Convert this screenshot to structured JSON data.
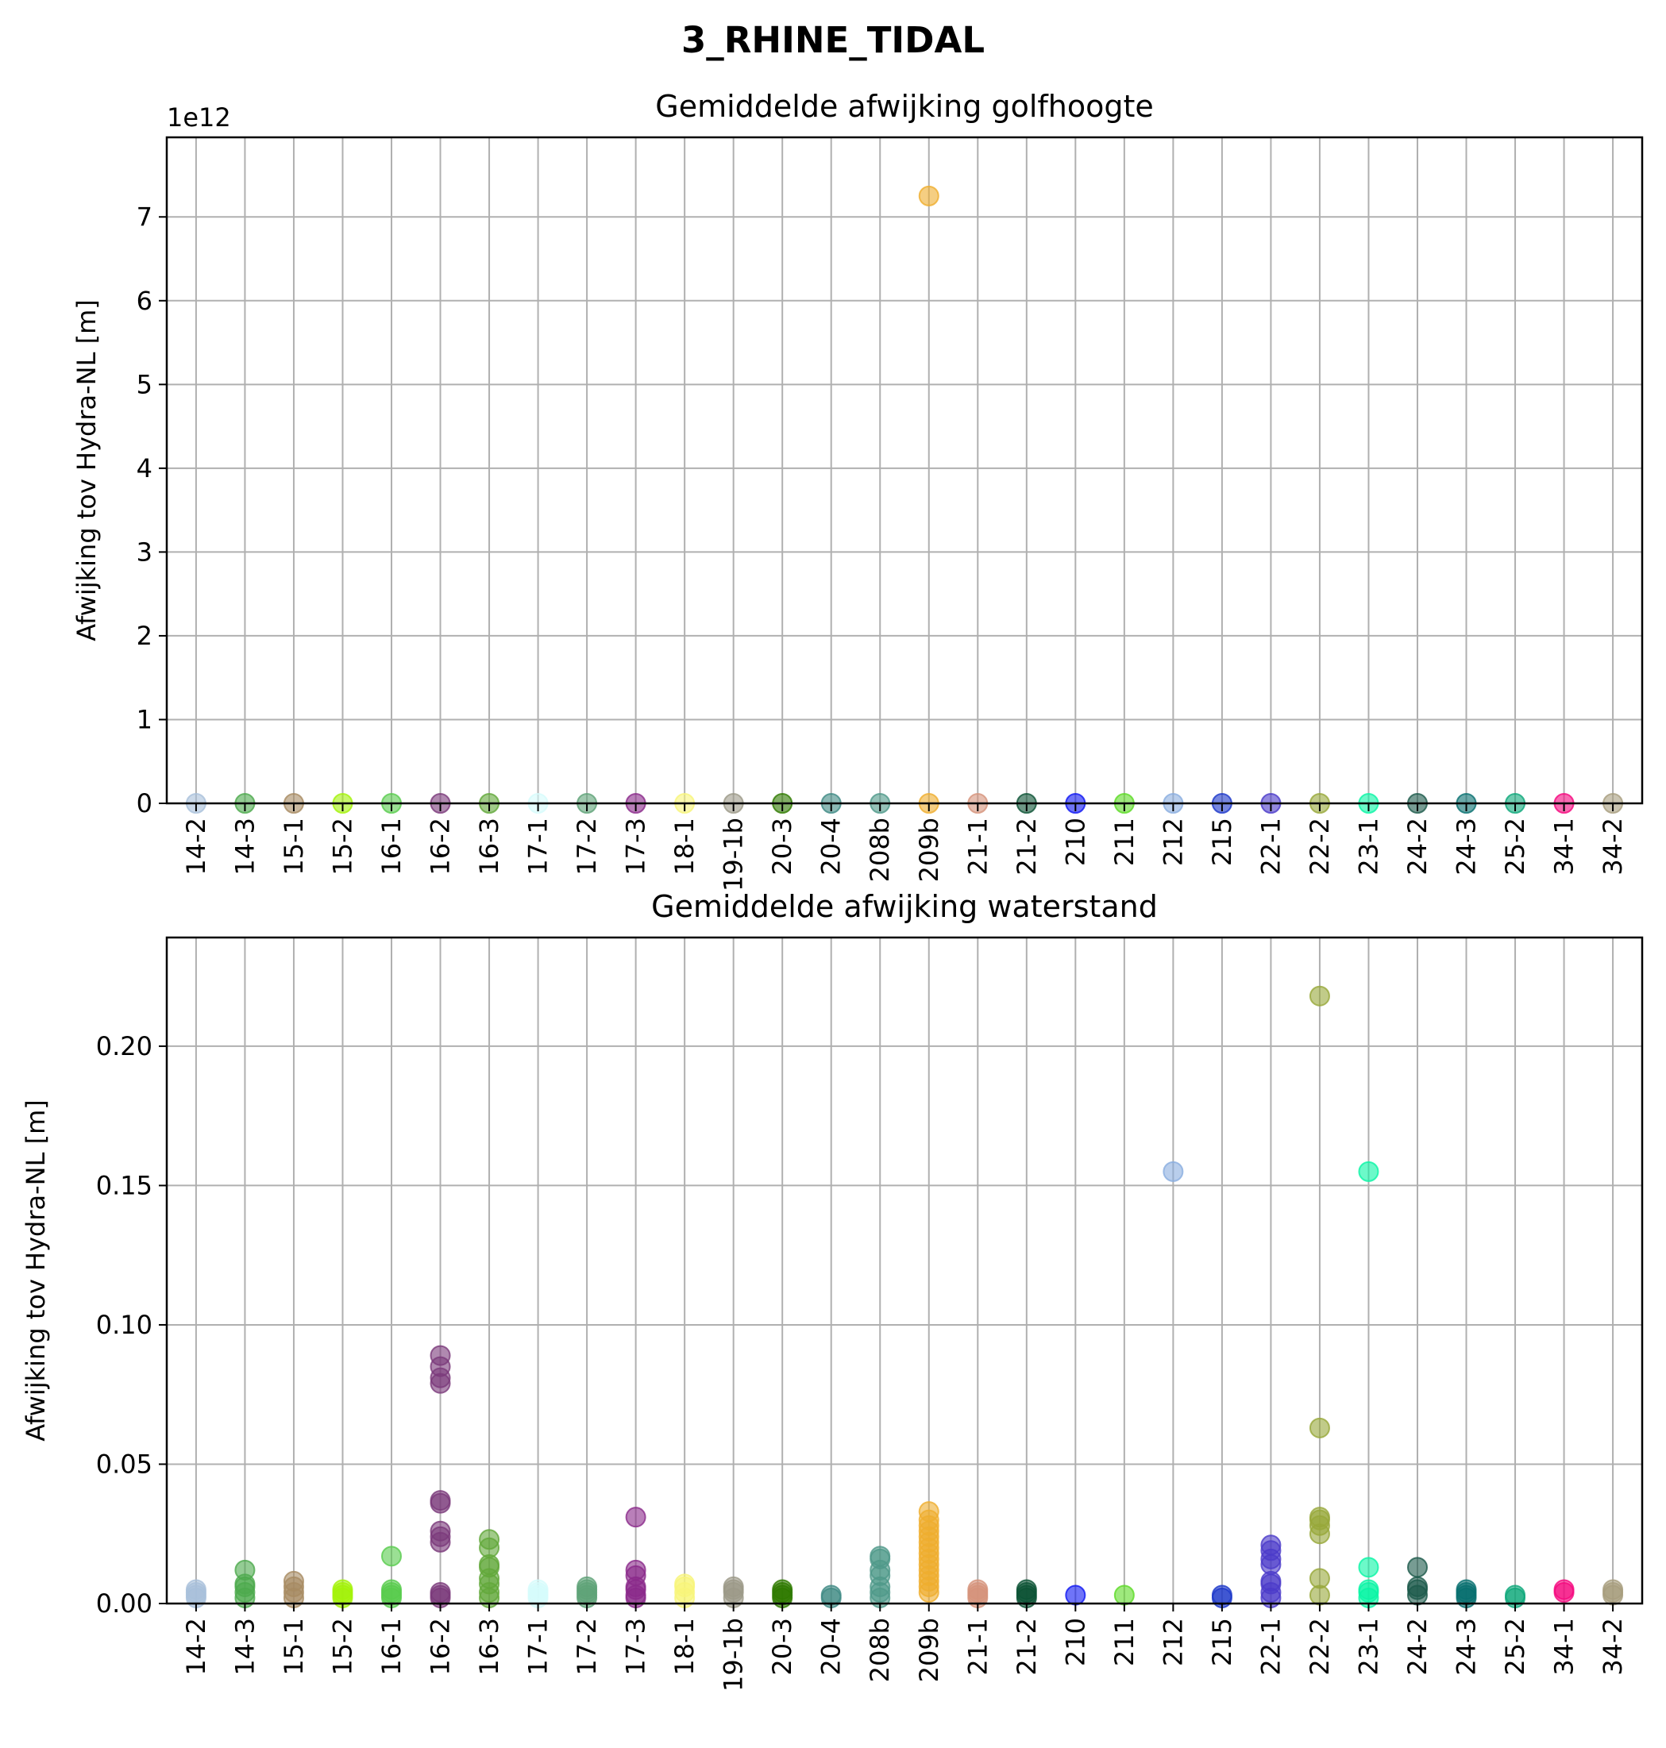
{
  "suptitle": "3_RHINE_TIDAL",
  "categories": [
    "14-2",
    "14-3",
    "15-1",
    "15-2",
    "16-1",
    "16-2",
    "16-3",
    "17-1",
    "17-2",
    "17-3",
    "18-1",
    "19-1b",
    "20-3",
    "20-4",
    "208b",
    "209b",
    "21-1",
    "21-2",
    "210",
    "211",
    "212",
    "215",
    "22-1",
    "22-2",
    "23-1",
    "24-2",
    "24-3",
    "25-2",
    "34-1",
    "34-2"
  ],
  "category_colors": {
    "14-2": "#a9c0db",
    "14-3": "#4daa4d",
    "15-1": "#a78b62",
    "15-2": "#a4f20a",
    "16-1": "#59cc4d",
    "16-2": "#7b3a7b",
    "16-3": "#62a83a",
    "17-1": "#d6fbfb",
    "17-2": "#5fa378",
    "17-3": "#8b2a8b",
    "18-1": "#f8f57a",
    "19-1b": "#9c9a88",
    "20-3": "#2f7a00",
    "20-4": "#3f8a84",
    "208b": "#4f9989",
    "209b": "#efae2e",
    "21-1": "#d6937c",
    "21-2": "#0d5436",
    "210": "#0f17f3",
    "211": "#5ddb26",
    "212": "#8aaee0",
    "215": "#1c37c9",
    "22-1": "#4b3bc9",
    "22-2": "#97a83a",
    "23-1": "#0af5a5",
    "24-2": "#1d5a4b",
    "24-3": "#097070",
    "25-2": "#0ea87a",
    "34-1": "#f5087e",
    "34-2": "#a89e7e"
  },
  "chart_data": [
    {
      "type": "scatter",
      "title": "Gemiddelde afwijking golfhoogte",
      "ylabel": "Afwijking tov Hydra-NL [m]",
      "offset_text": "1e12",
      "ylim": [
        0,
        7.95
      ],
      "yticks": [
        0,
        1,
        2,
        3,
        4,
        5,
        6,
        7
      ],
      "ytick_labels": [
        "0",
        "1",
        "2",
        "3",
        "4",
        "5",
        "6",
        "7"
      ],
      "grid": true,
      "points": [
        [
          "14-2",
          [
            0
          ]
        ],
        [
          "14-3",
          [
            0
          ]
        ],
        [
          "15-1",
          [
            0
          ]
        ],
        [
          "15-2",
          [
            0
          ]
        ],
        [
          "16-1",
          [
            0
          ]
        ],
        [
          "16-2",
          [
            0
          ]
        ],
        [
          "16-3",
          [
            0
          ]
        ],
        [
          "17-1",
          [
            0
          ]
        ],
        [
          "17-2",
          [
            0
          ]
        ],
        [
          "17-3",
          [
            0
          ]
        ],
        [
          "18-1",
          [
            0
          ]
        ],
        [
          "19-1b",
          [
            0
          ]
        ],
        [
          "20-3",
          [
            0
          ]
        ],
        [
          "20-4",
          [
            0
          ]
        ],
        [
          "208b",
          [
            0
          ]
        ],
        [
          "209b",
          [
            0,
            7.25
          ]
        ],
        [
          "21-1",
          [
            0
          ]
        ],
        [
          "21-2",
          [
            0
          ]
        ],
        [
          "210",
          [
            0
          ]
        ],
        [
          "211",
          [
            0
          ]
        ],
        [
          "212",
          [
            0
          ]
        ],
        [
          "215",
          [
            0
          ]
        ],
        [
          "22-1",
          [
            0
          ]
        ],
        [
          "22-2",
          [
            0
          ]
        ],
        [
          "23-1",
          [
            0
          ]
        ],
        [
          "24-2",
          [
            0
          ]
        ],
        [
          "24-3",
          [
            0
          ]
        ],
        [
          "25-2",
          [
            0
          ]
        ],
        [
          "34-1",
          [
            0
          ]
        ],
        [
          "34-2",
          [
            0
          ]
        ]
      ]
    },
    {
      "type": "scatter",
      "title": "Gemiddelde afwijking waterstand",
      "ylabel": "Afwijking tov Hydra-NL [m]",
      "offset_text": "",
      "ylim": [
        0,
        0.239
      ],
      "yticks": [
        0,
        0.05,
        0.1,
        0.15,
        0.2
      ],
      "ytick_labels": [
        "0.00",
        "0.05",
        "0.10",
        "0.15",
        "0.20"
      ],
      "grid": true,
      "points": [
        [
          "14-2",
          [
            0.002,
            0.003,
            0.004,
            0.005
          ]
        ],
        [
          "14-3",
          [
            0.002,
            0.004,
            0.006,
            0.007,
            0.012
          ]
        ],
        [
          "15-1",
          [
            0.002,
            0.004,
            0.006,
            0.008
          ]
        ],
        [
          "15-2",
          [
            0.002,
            0.003,
            0.004,
            0.005
          ]
        ],
        [
          "16-1",
          [
            0.002,
            0.003,
            0.004,
            0.005,
            0.017
          ]
        ],
        [
          "16-2",
          [
            0.002,
            0.003,
            0.004,
            0.022,
            0.024,
            0.026,
            0.036,
            0.037,
            0.079,
            0.081,
            0.085,
            0.089
          ]
        ],
        [
          "16-3",
          [
            0.002,
            0.004,
            0.007,
            0.009,
            0.013,
            0.014,
            0.02,
            0.023
          ]
        ],
        [
          "17-1",
          [
            0.002,
            0.003,
            0.004,
            0.005
          ]
        ],
        [
          "17-2",
          [
            0.002,
            0.003,
            0.004,
            0.005,
            0.006
          ]
        ],
        [
          "17-3",
          [
            0.002,
            0.003,
            0.005,
            0.006,
            0.01,
            0.012,
            0.031
          ]
        ],
        [
          "18-1",
          [
            0.002,
            0.004,
            0.006,
            0.007
          ]
        ],
        [
          "19-1b",
          [
            0.002,
            0.004,
            0.005,
            0.006
          ]
        ],
        [
          "20-3",
          [
            0.002,
            0.003,
            0.004,
            0.005
          ]
        ],
        [
          "20-4",
          [
            0.002,
            0.003
          ]
        ],
        [
          "208b",
          [
            0.002,
            0.004,
            0.006,
            0.01,
            0.012,
            0.016,
            0.017
          ]
        ],
        [
          "209b",
          [
            0.004,
            0.006,
            0.008,
            0.01,
            0.012,
            0.014,
            0.016,
            0.018,
            0.02,
            0.022,
            0.024,
            0.026,
            0.028,
            0.03,
            0.033
          ]
        ],
        [
          "21-1",
          [
            0.002,
            0.003,
            0.004,
            0.005
          ]
        ],
        [
          "21-2",
          [
            0.002,
            0.003,
            0.004,
            0.005
          ]
        ],
        [
          "210",
          [
            0.003
          ]
        ],
        [
          "211",
          [
            0.003
          ]
        ],
        [
          "212",
          [
            0.155
          ]
        ],
        [
          "215",
          [
            0.002,
            0.003
          ]
        ],
        [
          "22-1",
          [
            0.002,
            0.004,
            0.007,
            0.008,
            0.014,
            0.016,
            0.019,
            0.021
          ]
        ],
        [
          "22-2",
          [
            0.003,
            0.009,
            0.025,
            0.028,
            0.03,
            0.031,
            0.063,
            0.218
          ]
        ],
        [
          "23-1",
          [
            0.002,
            0.004,
            0.005,
            0.013,
            0.155
          ]
        ],
        [
          "24-2",
          [
            0.003,
            0.005,
            0.006,
            0.013
          ]
        ],
        [
          "24-3",
          [
            0.002,
            0.003,
            0.004,
            0.005
          ]
        ],
        [
          "25-2",
          [
            0.002,
            0.003
          ]
        ],
        [
          "34-1",
          [
            0.004,
            0.005
          ]
        ],
        [
          "34-2",
          [
            0.003,
            0.004,
            0.005
          ]
        ]
      ]
    }
  ]
}
